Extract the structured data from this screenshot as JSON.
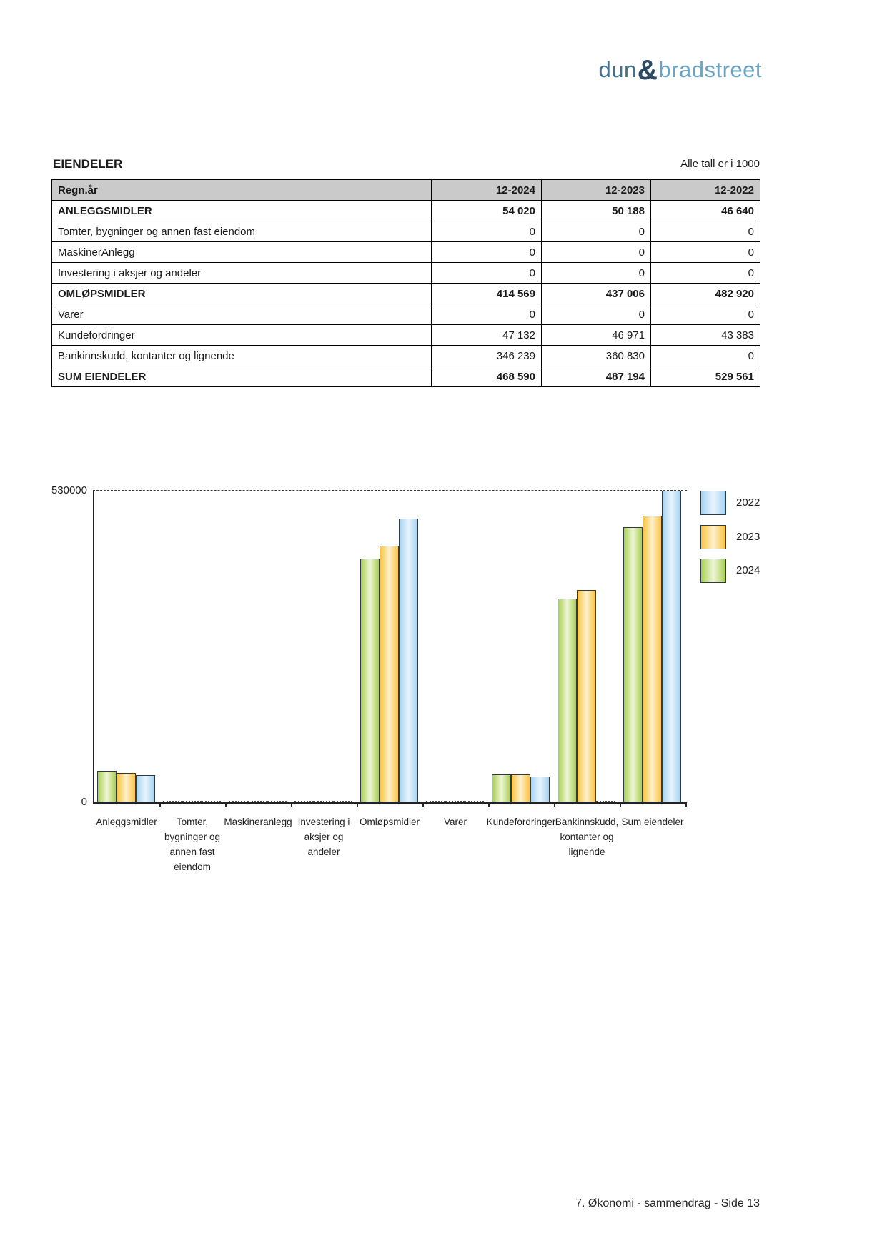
{
  "page": {
    "logo": {
      "part1": "dun",
      "amp": "&",
      "part2": "bradstreet"
    },
    "footer": "7. Økonomi - sammendrag - Side 13"
  },
  "section": {
    "title": "EIENDELER",
    "note": "Alle tall er i 1000"
  },
  "table": {
    "columns": [
      "Regn.år",
      "12-2024",
      "12-2023",
      "12-2022"
    ],
    "rows": [
      {
        "label": "ANLEGGSMIDLER",
        "values": [
          "54 020",
          "50 188",
          "46 640"
        ],
        "bold": true
      },
      {
        "label": "Tomter, bygninger og annen fast eiendom",
        "values": [
          "0",
          "0",
          "0"
        ],
        "bold": false
      },
      {
        "label": "MaskinerAnlegg",
        "values": [
          "0",
          "0",
          "0"
        ],
        "bold": false
      },
      {
        "label": "Investering i aksjer og andeler",
        "values": [
          "0",
          "0",
          "0"
        ],
        "bold": false
      },
      {
        "label": "OMLØPSMIDLER",
        "values": [
          "414 569",
          "437 006",
          "482 920"
        ],
        "bold": true
      },
      {
        "label": "Varer",
        "values": [
          "0",
          "0",
          "0"
        ],
        "bold": false
      },
      {
        "label": "Kundefordringer",
        "values": [
          "47 132",
          "46 971",
          "43 383"
        ],
        "bold": false
      },
      {
        "label": "Bankinnskudd, kontanter og lignende",
        "values": [
          "346 239",
          "360 830",
          "0"
        ],
        "bold": false
      },
      {
        "label": "SUM EIENDELER",
        "values": [
          "468 590",
          "487 194",
          "529 561"
        ],
        "bold": true
      }
    ]
  },
  "chart_data": {
    "type": "bar",
    "title": "",
    "xlabel": "",
    "ylabel": "",
    "ylim": [
      0,
      530000
    ],
    "ytick_labels": {
      "max": "530000",
      "zero": "0"
    },
    "grid": "single dashed gridline at y=530000",
    "legend_position": "right",
    "categories": [
      "Anleggsmidler",
      "Tomter, bygninger og annen fast eiendom",
      "Maskineranlegg",
      "Investering i aksjer og andeler",
      "Omløpsmidler",
      "Varer",
      "Kundefordringer",
      "Bankinnskudd, kontanter og lignende",
      "Sum eiendeler"
    ],
    "category_label_lines": [
      [
        "Anleggsmidler"
      ],
      [
        "Tomter,",
        "bygninger og",
        "annen fast",
        "eiendom"
      ],
      [
        "Maskineranlegg"
      ],
      [
        "Investering i",
        "aksjer og",
        "andeler"
      ],
      [
        "Omløpsmidler"
      ],
      [
        "Varer"
      ],
      [
        "Kundefordringer"
      ],
      [
        "Bankinnskudd,",
        "kontanter og",
        "lignende"
      ],
      [
        "Sum eiendeler"
      ]
    ],
    "series": [
      {
        "name": "2024",
        "color": "#a9cf52",
        "color_light": "#eef6d7",
        "values": [
          54020,
          0,
          0,
          0,
          414569,
          0,
          47132,
          346239,
          468590
        ]
      },
      {
        "name": "2023",
        "color": "#f9c440",
        "color_light": "#fdf0cc",
        "values": [
          50188,
          0,
          0,
          0,
          437006,
          0,
          46971,
          360830,
          487194
        ]
      },
      {
        "name": "2022",
        "color": "#a5d4f2",
        "color_light": "#e8f4fd",
        "values": [
          46640,
          0,
          0,
          0,
          482920,
          0,
          43383,
          0,
          529561
        ]
      }
    ],
    "legend": [
      {
        "label": "2022"
      },
      {
        "label": "2023"
      },
      {
        "label": "2024"
      }
    ]
  }
}
